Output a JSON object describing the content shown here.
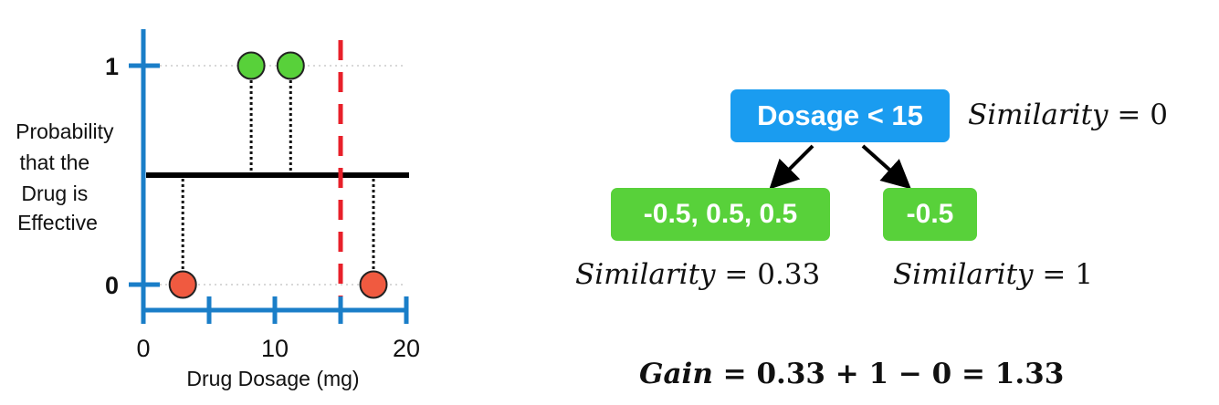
{
  "chart_data": {
    "type": "scatter",
    "xlabel": "Drug Dosage (mg)",
    "ylabel_lines": [
      "Probability",
      "that the",
      "Drug is",
      "Effective"
    ],
    "xlim": [
      0,
      20
    ],
    "ylim": [
      0,
      1
    ],
    "x_ticks": [
      0,
      5,
      10,
      15,
      20
    ],
    "x_tick_labels": [
      "0",
      "10",
      "20"
    ],
    "x_tick_label_values": [
      0,
      10,
      20
    ],
    "y_tick_labels": [
      "0",
      "1"
    ],
    "y_tick_label_values": [
      0,
      1
    ],
    "prediction_line": 0.5,
    "split_threshold": 15,
    "points": [
      {
        "x": 3,
        "y": 0,
        "color": "#f05a40"
      },
      {
        "x": 8.2,
        "y": 1,
        "color": "#58d13a"
      },
      {
        "x": 11.2,
        "y": 1,
        "color": "#58d13a"
      },
      {
        "x": 17.5,
        "y": 0,
        "color": "#f05a40"
      }
    ],
    "colors": {
      "axis": "#1a7ec8",
      "line": "#000000",
      "split": "#e8202a"
    }
  },
  "tree": {
    "root_label": "Dosage < 15",
    "left_leaf": "-0.5, 0.5, 0.5",
    "right_leaf": "-0.5",
    "root_color": "#1a9cf0",
    "leaf_color": "#58d13a"
  },
  "similarity": {
    "word": "Similarity",
    "root_value": "0",
    "left_value": "0.33",
    "right_value": "1"
  },
  "gain": {
    "word": "Gain",
    "expression": "0.33 + 1 − 0 = 1.33"
  }
}
